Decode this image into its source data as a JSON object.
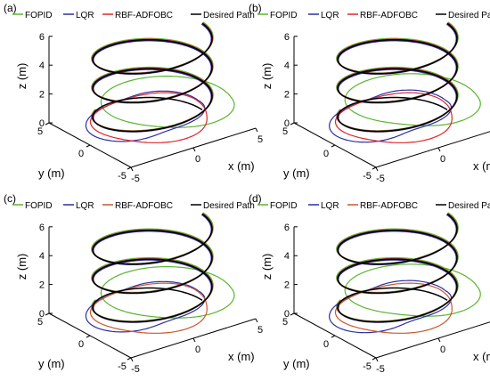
{
  "chart_data": [
    {
      "type": "line",
      "panel_label": "(a)",
      "xlabel": "x (m)",
      "ylabel": "y (m)",
      "zlabel": "z (m)",
      "xlim": [
        -5,
        5
      ],
      "ylim": [
        -5,
        5
      ],
      "zlim": [
        0,
        6
      ],
      "x_ticks": [
        "-5",
        "0",
        "5"
      ],
      "y_ticks": [
        "-5",
        "0",
        "5"
      ],
      "z_ticks": [
        "0",
        "2",
        "4",
        "6"
      ],
      "legend": {
        "placement": "top",
        "entries": [
          "FOPID",
          "LQR",
          "RBF-ADFOBC",
          "Desired Path"
        ]
      },
      "series": [
        {
          "name": "FOPID",
          "color": "#5bb52f",
          "initial_transient": "large-loop"
        },
        {
          "name": "LQR",
          "color": "#2b2fa0",
          "initial_transient": "medium-loop"
        },
        {
          "name": "RBF-ADFOBC",
          "color": "#e0252c",
          "initial_transient": "small-loop"
        },
        {
          "name": "Desired Path",
          "color": "#000000",
          "path": "helix",
          "radius": 4,
          "z_range": [
            0,
            6
          ],
          "turns": 3
        }
      ]
    },
    {
      "type": "line",
      "panel_label": "(b)",
      "xlabel": "x (m)",
      "ylabel": "y (m)",
      "zlabel": "z (m)",
      "xlim": [
        -5,
        5
      ],
      "ylim": [
        -5,
        5
      ],
      "zlim": [
        0,
        6
      ],
      "x_ticks": [
        "-5",
        "0",
        "5"
      ],
      "y_ticks": [
        "-5",
        "0",
        "5"
      ],
      "z_ticks": [
        "0",
        "2",
        "4",
        "6"
      ],
      "legend": {
        "placement": "top",
        "entries": [
          "FOPID",
          "LQR",
          "RBF-ADFOBC",
          "Desired Path"
        ]
      },
      "series": [
        {
          "name": "FOPID",
          "color": "#5bb52f",
          "initial_transient": "large-loop"
        },
        {
          "name": "LQR",
          "color": "#2b2fa0",
          "initial_transient": "medium-loop"
        },
        {
          "name": "RBF-ADFOBC",
          "color": "#e0252c",
          "initial_transient": "small-loop"
        },
        {
          "name": "Desired Path",
          "color": "#000000",
          "path": "helix",
          "radius": 4,
          "z_range": [
            0,
            6
          ],
          "turns": 3
        }
      ]
    },
    {
      "type": "line",
      "panel_label": "(c)",
      "xlabel": "x (m)",
      "ylabel": "y (m)",
      "zlabel": "z (m)",
      "xlim": [
        -5,
        5
      ],
      "ylim": [
        -5,
        5
      ],
      "zlim": [
        0,
        6
      ],
      "x_ticks": [
        "-5",
        "0",
        "5"
      ],
      "y_ticks": [
        "-5",
        "0",
        "5"
      ],
      "z_ticks": [
        "0",
        "2",
        "4",
        "6"
      ],
      "legend": {
        "placement": "top",
        "entries": [
          "FOPID",
          "LQR",
          "RBF-ADFOBC",
          "Desired Path"
        ]
      },
      "series": [
        {
          "name": "FOPID",
          "color": "#5bb52f",
          "initial_transient": "large-loop"
        },
        {
          "name": "LQR",
          "color": "#2b2fa0",
          "initial_transient": "medium-loop"
        },
        {
          "name": "RBF-ADFOBC",
          "color": "#c9572c",
          "initial_transient": "small-loop"
        },
        {
          "name": "Desired Path",
          "color": "#000000",
          "path": "helix",
          "radius": 4,
          "z_range": [
            0,
            6
          ],
          "turns": 3
        }
      ]
    },
    {
      "type": "line",
      "panel_label": "(d)",
      "xlabel": "x (m)",
      "ylabel": "y (m)",
      "zlabel": "z (m)",
      "xlim": [
        -5,
        5
      ],
      "ylim": [
        -5,
        5
      ],
      "zlim": [
        0,
        6
      ],
      "x_ticks": [
        "-5",
        "0",
        "5"
      ],
      "y_ticks": [
        "-5",
        "0",
        "5"
      ],
      "z_ticks": [
        "0",
        "2",
        "4",
        "6"
      ],
      "legend": {
        "placement": "top",
        "entries": [
          "FOPID",
          "LQR",
          "RBF-ADFOBC",
          "Desired Path"
        ]
      },
      "series": [
        {
          "name": "FOPID",
          "color": "#5bb52f",
          "initial_transient": "large-loop"
        },
        {
          "name": "LQR",
          "color": "#2b2fa0",
          "initial_transient": "medium-loop"
        },
        {
          "name": "RBF-ADFOBC",
          "color": "#c9572c",
          "initial_transient": "small-loop"
        },
        {
          "name": "Desired Path",
          "color": "#000000",
          "path": "helix",
          "radius": 4,
          "z_range": [
            0,
            6
          ],
          "turns": 3
        }
      ]
    }
  ]
}
